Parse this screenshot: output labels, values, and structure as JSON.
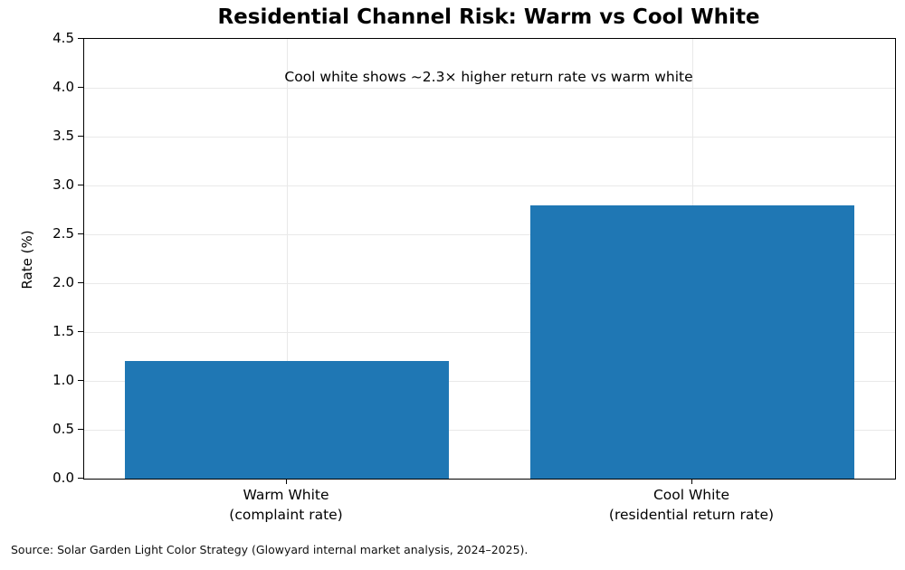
{
  "chart_data": {
    "type": "bar",
    "title": "Residential Channel Risk: Warm vs Cool White",
    "annotation": {
      "text": "Cool white shows ~2.3× higher return rate vs warm white",
      "x_fraction": 0.5,
      "y_value": 4.1
    },
    "categories": [
      {
        "line1": "Warm White",
        "line2": "(complaint rate)"
      },
      {
        "line1": "Cool White",
        "line2": "(residential return rate)"
      }
    ],
    "values": [
      1.2,
      2.8
    ],
    "xlabel": "",
    "ylabel": "Rate (%)",
    "ylim": [
      0,
      4.5
    ],
    "ytick_step": 0.5,
    "bar_color": "#1f77b4",
    "bar_width_fraction": 0.8,
    "grid": true,
    "grid_color": "#e9e9e9",
    "legend": "none",
    "source": "Source: Solar Garden Light Color Strategy (Glowyard internal market analysis, 2024–2025)."
  }
}
